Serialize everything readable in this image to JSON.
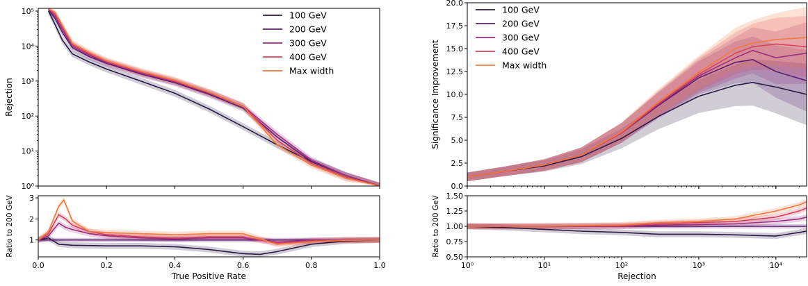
{
  "colors": {
    "100 GeV": "#2a1a45",
    "200 GeV": "#5a1d6e",
    "300 GeV": "#9c2d7f",
    "400 GeV": "#d6425e",
    "Max width": "#f07a3e"
  },
  "chart_data": [
    {
      "type": "line",
      "panel": "left-top",
      "xlabel": "",
      "ylabel": "Rejection",
      "yscale": "log",
      "xlim": [
        0,
        1
      ],
      "ylim": [
        1,
        120000
      ],
      "yticks": [
        1,
        10,
        100,
        1000,
        10000,
        100000
      ],
      "ytick_labels": [
        "10⁰",
        "10¹",
        "10²",
        "10³",
        "10⁴",
        "10⁵"
      ],
      "xticks": [
        0,
        0.2,
        0.4,
        0.6,
        0.8,
        1.0
      ],
      "legend": {
        "position": "top-right",
        "entries": [
          "100 GeV",
          "200 GeV",
          "300 GeV",
          "400 GeV",
          "Max width"
        ]
      },
      "series": [
        {
          "name": "100 GeV",
          "x": [
            0.03,
            0.05,
            0.07,
            0.1,
            0.15,
            0.2,
            0.3,
            0.4,
            0.5,
            0.6,
            0.7,
            0.8,
            0.9,
            1.0
          ],
          "values": [
            100000,
            40000,
            15000,
            6000,
            3500,
            2200,
            1000,
            450,
            160,
            50,
            15,
            5,
            2,
            1
          ]
        },
        {
          "name": "200 GeV",
          "x": [
            0.03,
            0.05,
            0.07,
            0.1,
            0.15,
            0.2,
            0.3,
            0.4,
            0.5,
            0.6,
            0.7,
            0.8,
            0.9,
            1.0
          ],
          "values": [
            110000,
            60000,
            25000,
            9000,
            5000,
            3200,
            1600,
            900,
            420,
            170,
            25,
            5,
            2,
            1
          ]
        },
        {
          "name": "300 GeV",
          "x": [
            0.03,
            0.05,
            0.07,
            0.1,
            0.15,
            0.2,
            0.3,
            0.4,
            0.5,
            0.6,
            0.7,
            0.8,
            0.9,
            1.0
          ],
          "values": [
            115000,
            70000,
            30000,
            10000,
            5500,
            3400,
            1700,
            950,
            450,
            190,
            30,
            5.5,
            2,
            1
          ]
        },
        {
          "name": "400 GeV",
          "x": [
            0.03,
            0.05,
            0.07,
            0.1,
            0.15,
            0.2,
            0.3,
            0.4,
            0.5,
            0.6,
            0.7,
            0.8,
            0.9,
            1.0
          ],
          "values": [
            118000,
            80000,
            35000,
            11000,
            6000,
            3600,
            1800,
            1000,
            470,
            190,
            20,
            4.5,
            1.8,
            1
          ]
        },
        {
          "name": "Max width",
          "x": [
            0.03,
            0.05,
            0.07,
            0.1,
            0.15,
            0.2,
            0.3,
            0.4,
            0.5,
            0.6,
            0.7,
            0.8,
            0.9,
            1.0
          ],
          "values": [
            120000,
            90000,
            40000,
            12000,
            6500,
            3800,
            1900,
            1050,
            480,
            190,
            15,
            4,
            1.7,
            1
          ]
        }
      ]
    },
    {
      "type": "line",
      "panel": "left-bottom",
      "xlabel": "True Positive Rate",
      "ylabel": "Ratio to 200 GeV",
      "xlim": [
        0,
        1
      ],
      "ylim": [
        0.2,
        3.1
      ],
      "yticks": [
        1,
        2,
        3
      ],
      "xticks": [
        0,
        0.2,
        0.4,
        0.6,
        0.8,
        1.0
      ],
      "xtick_labels": [
        "0.0",
        "0.2",
        "0.4",
        "0.6",
        "0.8",
        "1.0"
      ],
      "series": [
        {
          "name": "100 GeV",
          "x": [
            0,
            0.03,
            0.06,
            0.1,
            0.2,
            0.3,
            0.4,
            0.5,
            0.55,
            0.6,
            0.65,
            0.7,
            0.8,
            0.9,
            1.0
          ],
          "values": [
            1,
            1.1,
            0.8,
            0.75,
            0.72,
            0.72,
            0.68,
            0.55,
            0.45,
            0.35,
            0.32,
            0.45,
            0.8,
            0.95,
            1
          ]
        },
        {
          "name": "200 GeV",
          "x": [
            0,
            0.2,
            0.4,
            0.6,
            0.8,
            1.0
          ],
          "values": [
            1,
            1,
            1,
            1,
            1,
            1
          ]
        },
        {
          "name": "300 GeV",
          "x": [
            0,
            0.03,
            0.06,
            0.08,
            0.1,
            0.15,
            0.2,
            0.3,
            0.4,
            0.5,
            0.6,
            0.7,
            0.8,
            0.9,
            1.0
          ],
          "values": [
            1,
            1.2,
            1.8,
            1.6,
            1.5,
            1.3,
            1.2,
            1.1,
            1.05,
            1.1,
            1.1,
            0.9,
            0.98,
            1,
            1
          ]
        },
        {
          "name": "400 GeV",
          "x": [
            0,
            0.03,
            0.06,
            0.08,
            0.1,
            0.15,
            0.2,
            0.3,
            0.4,
            0.5,
            0.6,
            0.7,
            0.8,
            0.9,
            1.0
          ],
          "values": [
            1,
            1.3,
            2.2,
            2.0,
            1.7,
            1.4,
            1.25,
            1.15,
            1.1,
            1.15,
            1.15,
            0.85,
            0.95,
            1,
            1
          ]
        },
        {
          "name": "Max width",
          "x": [
            0,
            0.03,
            0.06,
            0.075,
            0.09,
            0.1,
            0.15,
            0.2,
            0.3,
            0.4,
            0.5,
            0.6,
            0.7,
            0.8,
            0.9,
            1.0
          ],
          "values": [
            1,
            1.4,
            2.6,
            2.9,
            2.3,
            1.9,
            1.4,
            1.35,
            1.3,
            1.25,
            1.3,
            1.3,
            0.8,
            0.92,
            0.98,
            1
          ]
        }
      ]
    },
    {
      "type": "line",
      "panel": "right-top",
      "xlabel": "",
      "ylabel": "Significance Improvement",
      "xscale": "log",
      "xlim": [
        1,
        25000
      ],
      "ylim": [
        0,
        20
      ],
      "yticks": [
        0,
        2.5,
        5,
        7.5,
        10,
        12.5,
        15,
        17.5,
        20
      ],
      "ytick_labels": [
        "0.0",
        "2.5",
        "5.0",
        "7.5",
        "10.0",
        "12.5",
        "15.0",
        "17.5",
        "20.0"
      ],
      "legend": {
        "position": "top-left",
        "entries": [
          "100 GeV",
          "200 GeV",
          "300 GeV",
          "400 GeV",
          "Max width"
        ]
      },
      "series": [
        {
          "name": "100 GeV",
          "x": [
            1,
            3,
            10,
            30,
            100,
            300,
            1000,
            3000,
            5000,
            10000,
            25000
          ],
          "values": [
            1,
            1.6,
            2.2,
            3.2,
            5.2,
            7.6,
            9.8,
            11.0,
            11.3,
            10.8,
            10.0
          ]
        },
        {
          "name": "200 GeV",
          "x": [
            1,
            3,
            10,
            30,
            100,
            300,
            1000,
            3000,
            5000,
            10000,
            25000
          ],
          "values": [
            1,
            1.6,
            2.3,
            3.4,
            5.8,
            8.8,
            11.8,
            13.5,
            13.8,
            12.5,
            11.5
          ]
        },
        {
          "name": "300 GeV",
          "x": [
            1,
            3,
            10,
            30,
            100,
            300,
            1000,
            3000,
            5000,
            10000,
            25000
          ],
          "values": [
            1,
            1.6,
            2.3,
            3.4,
            5.8,
            8.9,
            12.0,
            14.0,
            14.8,
            14.0,
            14.5
          ]
        },
        {
          "name": "400 GeV",
          "x": [
            1,
            3,
            10,
            30,
            100,
            300,
            1000,
            3000,
            5000,
            10000,
            25000
          ],
          "values": [
            1,
            1.6,
            2.3,
            3.4,
            5.8,
            9.0,
            12.2,
            14.5,
            15.2,
            15.5,
            15.2
          ]
        },
        {
          "name": "Max width",
          "x": [
            1,
            3,
            10,
            30,
            100,
            300,
            1000,
            3000,
            5000,
            10000,
            25000
          ],
          "values": [
            1,
            1.6,
            2.3,
            3.4,
            5.9,
            9.2,
            12.4,
            15.0,
            15.6,
            16.0,
            16.2
          ]
        }
      ]
    },
    {
      "type": "line",
      "panel": "right-bottom",
      "xlabel": "Rejection",
      "ylabel": "Ratio to 200 GeV",
      "xscale": "log",
      "xlim": [
        1,
        25000
      ],
      "ylim": [
        0.5,
        1.5
      ],
      "yticks": [
        0.5,
        0.75,
        1.0,
        1.25,
        1.5
      ],
      "ytick_labels": [
        "0.50",
        "0.75",
        "1.00",
        "1.25",
        "1.50"
      ],
      "xticks": [
        1,
        10,
        100,
        1000,
        10000
      ],
      "xtick_labels": [
        "10⁰",
        "10¹",
        "10²",
        "10³",
        "10⁴"
      ],
      "series": [
        {
          "name": "100 GeV",
          "x": [
            1,
            3,
            10,
            30,
            100,
            300,
            1000,
            3000,
            10000,
            20000,
            25000
          ],
          "values": [
            1,
            0.98,
            0.95,
            0.92,
            0.9,
            0.87,
            0.87,
            0.86,
            0.84,
            0.9,
            0.92
          ]
        },
        {
          "name": "200 GeV",
          "x": [
            1,
            10,
            100,
            1000,
            10000,
            25000
          ],
          "values": [
            1,
            1,
            1,
            1,
            1,
            1
          ]
        },
        {
          "name": "300 GeV",
          "x": [
            1,
            10,
            100,
            300,
            1000,
            3000,
            10000,
            20000,
            25000
          ],
          "values": [
            1,
            1.0,
            1.0,
            1.02,
            1.03,
            1.04,
            1.08,
            1.12,
            1.15
          ]
        },
        {
          "name": "400 GeV",
          "x": [
            1,
            10,
            100,
            300,
            1000,
            3000,
            10000,
            20000,
            25000
          ],
          "values": [
            1,
            1.0,
            1.01,
            1.04,
            1.06,
            1.08,
            1.15,
            1.25,
            1.3
          ]
        },
        {
          "name": "Max width",
          "x": [
            1,
            10,
            100,
            300,
            1000,
            3000,
            10000,
            20000,
            25000
          ],
          "values": [
            1,
            1.0,
            1.02,
            1.06,
            1.08,
            1.12,
            1.25,
            1.35,
            1.4
          ]
        }
      ]
    }
  ]
}
